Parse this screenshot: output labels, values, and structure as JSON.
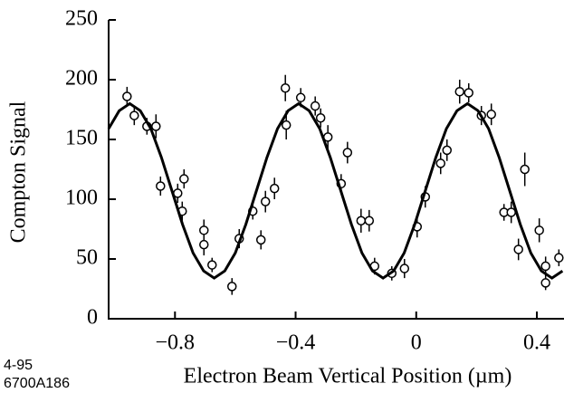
{
  "chart_data": {
    "type": "scatter",
    "x_label": "Electron Beam Vertical Position (µm)",
    "y_label": "Compton Signal",
    "notes": [
      "4-95",
      "6700A186"
    ],
    "xlim": [
      -1.02,
      0.49
    ],
    "ylim": [
      0,
      250
    ],
    "xticks": [
      {
        "value": -0.8,
        "label": "−0.8"
      },
      {
        "value": -0.4,
        "label": "−0.4"
      },
      0,
      0.4
    ],
    "yticks": [
      0,
      50,
      100,
      150,
      200,
      250
    ],
    "series": [
      {
        "type": "scatter",
        "color": "#000000",
        "x": [
          -0.959,
          -0.935,
          -0.893,
          -0.863,
          -0.848,
          -0.791,
          -0.77,
          -0.776,
          -0.704,
          -0.704,
          -0.677,
          -0.611,
          -0.587,
          -0.542,
          -0.515,
          -0.5,
          -0.47,
          -0.434,
          -0.431,
          -0.383,
          -0.335,
          -0.317,
          -0.293,
          -0.249,
          -0.228,
          -0.183,
          -0.156,
          -0.138,
          -0.081,
          -0.039,
          0.003,
          0.03,
          0.081,
          0.102,
          0.144,
          0.174,
          0.216,
          0.249,
          0.291,
          0.315,
          0.339,
          0.36,
          0.408,
          0.429,
          0.429,
          0.473
        ],
        "values": [
          186,
          170,
          161,
          161,
          111,
          105,
          117,
          90,
          74,
          62,
          45,
          27,
          67,
          90,
          66,
          98,
          109,
          193,
          162,
          185,
          178,
          168,
          152,
          113,
          139,
          82,
          82,
          44,
          38,
          42,
          77,
          102,
          130,
          141,
          190,
          189,
          170,
          171,
          89,
          89,
          58,
          125,
          74,
          44,
          30,
          51
        ],
        "errors": [
          8,
          8,
          7,
          10,
          8,
          8,
          8,
          8,
          9,
          9,
          6,
          7,
          8,
          7,
          8,
          9,
          9,
          11,
          12,
          8,
          8,
          8,
          10,
          8,
          9,
          10,
          9,
          7,
          6,
          8,
          9,
          9,
          9,
          9,
          10,
          8,
          8,
          9,
          7,
          9,
          9,
          14,
          10,
          8,
          6,
          7
        ]
      },
      {
        "type": "line",
        "color": "#000000",
        "x": [
          -1.02,
          -0.985,
          -0.95,
          -0.915,
          -0.88,
          -0.845,
          -0.81,
          -0.775,
          -0.74,
          -0.705,
          -0.67,
          -0.635,
          -0.6,
          -0.565,
          -0.53,
          -0.495,
          -0.46,
          -0.425,
          -0.39,
          -0.355,
          -0.32,
          -0.285,
          -0.25,
          -0.215,
          -0.18,
          -0.145,
          -0.11,
          -0.075,
          -0.04,
          -0.005,
          0.03,
          0.065,
          0.1,
          0.135,
          0.17,
          0.205,
          0.24,
          0.275,
          0.31,
          0.345,
          0.38,
          0.415,
          0.45,
          0.485
        ],
        "values": [
          159,
          174,
          180,
          174,
          159,
          135,
          107,
          79,
          55,
          40,
          34,
          40,
          55,
          79,
          107,
          135,
          159,
          174,
          180,
          174,
          159,
          135,
          107,
          79,
          55,
          40,
          34,
          40,
          55,
          79,
          107,
          135,
          159,
          174,
          180,
          174,
          159,
          135,
          107,
          79,
          55,
          40,
          34,
          40
        ]
      }
    ]
  }
}
